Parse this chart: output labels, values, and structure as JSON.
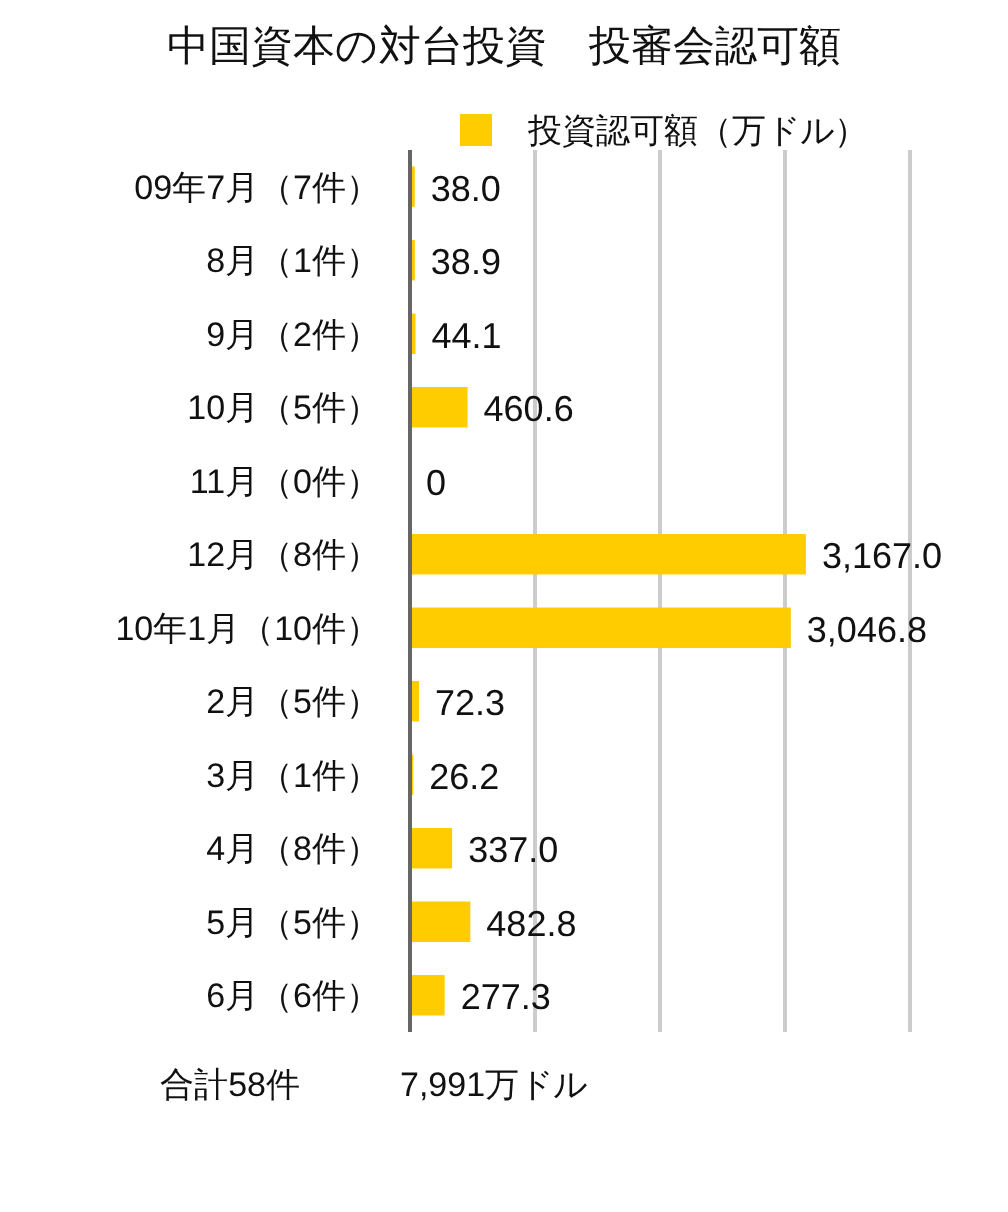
{
  "chart_data": {
    "type": "bar",
    "orientation": "horizontal",
    "title": "中国資本の対台投資　投審会認可額",
    "categories": [
      "09年7月（7件）",
      "8月（1件）",
      "9月（2件）",
      "10月（5件）",
      "11月（0件）",
      "12月（8件）",
      "10年1月（10件）",
      "2月（5件）",
      "3月（1件）",
      "4月（8件）",
      "5月（5件）",
      "6月（6件）"
    ],
    "series": [
      {
        "name": "投資認可額（万ドル）",
        "color": "#ffcc00",
        "values": [
          38.0,
          38.9,
          44.1,
          460.6,
          0,
          3167.0,
          3046.8,
          72.3,
          26.2,
          337.0,
          482.8,
          277.3
        ],
        "value_labels": [
          "38.0",
          "38.9",
          "44.1",
          "460.6",
          "0",
          "3,167.0",
          "3,046.8",
          "72.3",
          "26.2",
          "337.0",
          "482.8",
          "277.3"
        ]
      }
    ],
    "xlim": [
      0,
      4000
    ],
    "xticks": [
      {
        "value": 0,
        "label": null
      },
      {
        "value": 1000,
        "label": null
      },
      {
        "value": 2000,
        "label": null
      },
      {
        "value": 3000,
        "label": null
      },
      {
        "value": 4000,
        "label": null
      }
    ],
    "grid": "x",
    "legend": "top right",
    "tick_labels": "y",
    "annotations": [
      "合計58件",
      "7,991万ドル"
    ]
  }
}
